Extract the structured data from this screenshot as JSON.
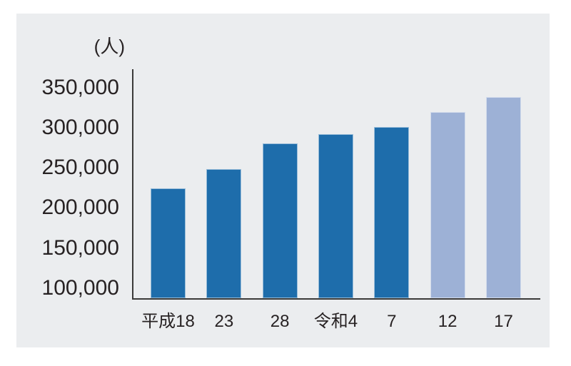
{
  "page": {
    "background": "#ffffff",
    "panel_background": "#ebedef",
    "text_color": "#272223",
    "axis_color": "#3b3a39"
  },
  "chart_data": {
    "type": "bar",
    "unit_label": "(人)",
    "categories": [
      "平成18",
      "23",
      "28",
      "令和4",
      "7",
      "12",
      "17"
    ],
    "values": [
      224000,
      248000,
      280000,
      292000,
      301000,
      319000,
      338000
    ],
    "bar_styles": [
      "actual",
      "actual",
      "actual",
      "actual",
      "actual",
      "projection",
      "projection"
    ],
    "colors": {
      "actual": "#1e6dab",
      "projection": "#9db1d6"
    },
    "yticks": [
      350000,
      300000,
      250000,
      200000,
      150000,
      100000
    ],
    "ytick_labels": [
      "350,000",
      "300,000",
      "250,000",
      "200,000",
      "150,000",
      "100,000"
    ],
    "ylim": [
      100000,
      350000
    ],
    "grid": false,
    "legend": false,
    "title": ""
  }
}
